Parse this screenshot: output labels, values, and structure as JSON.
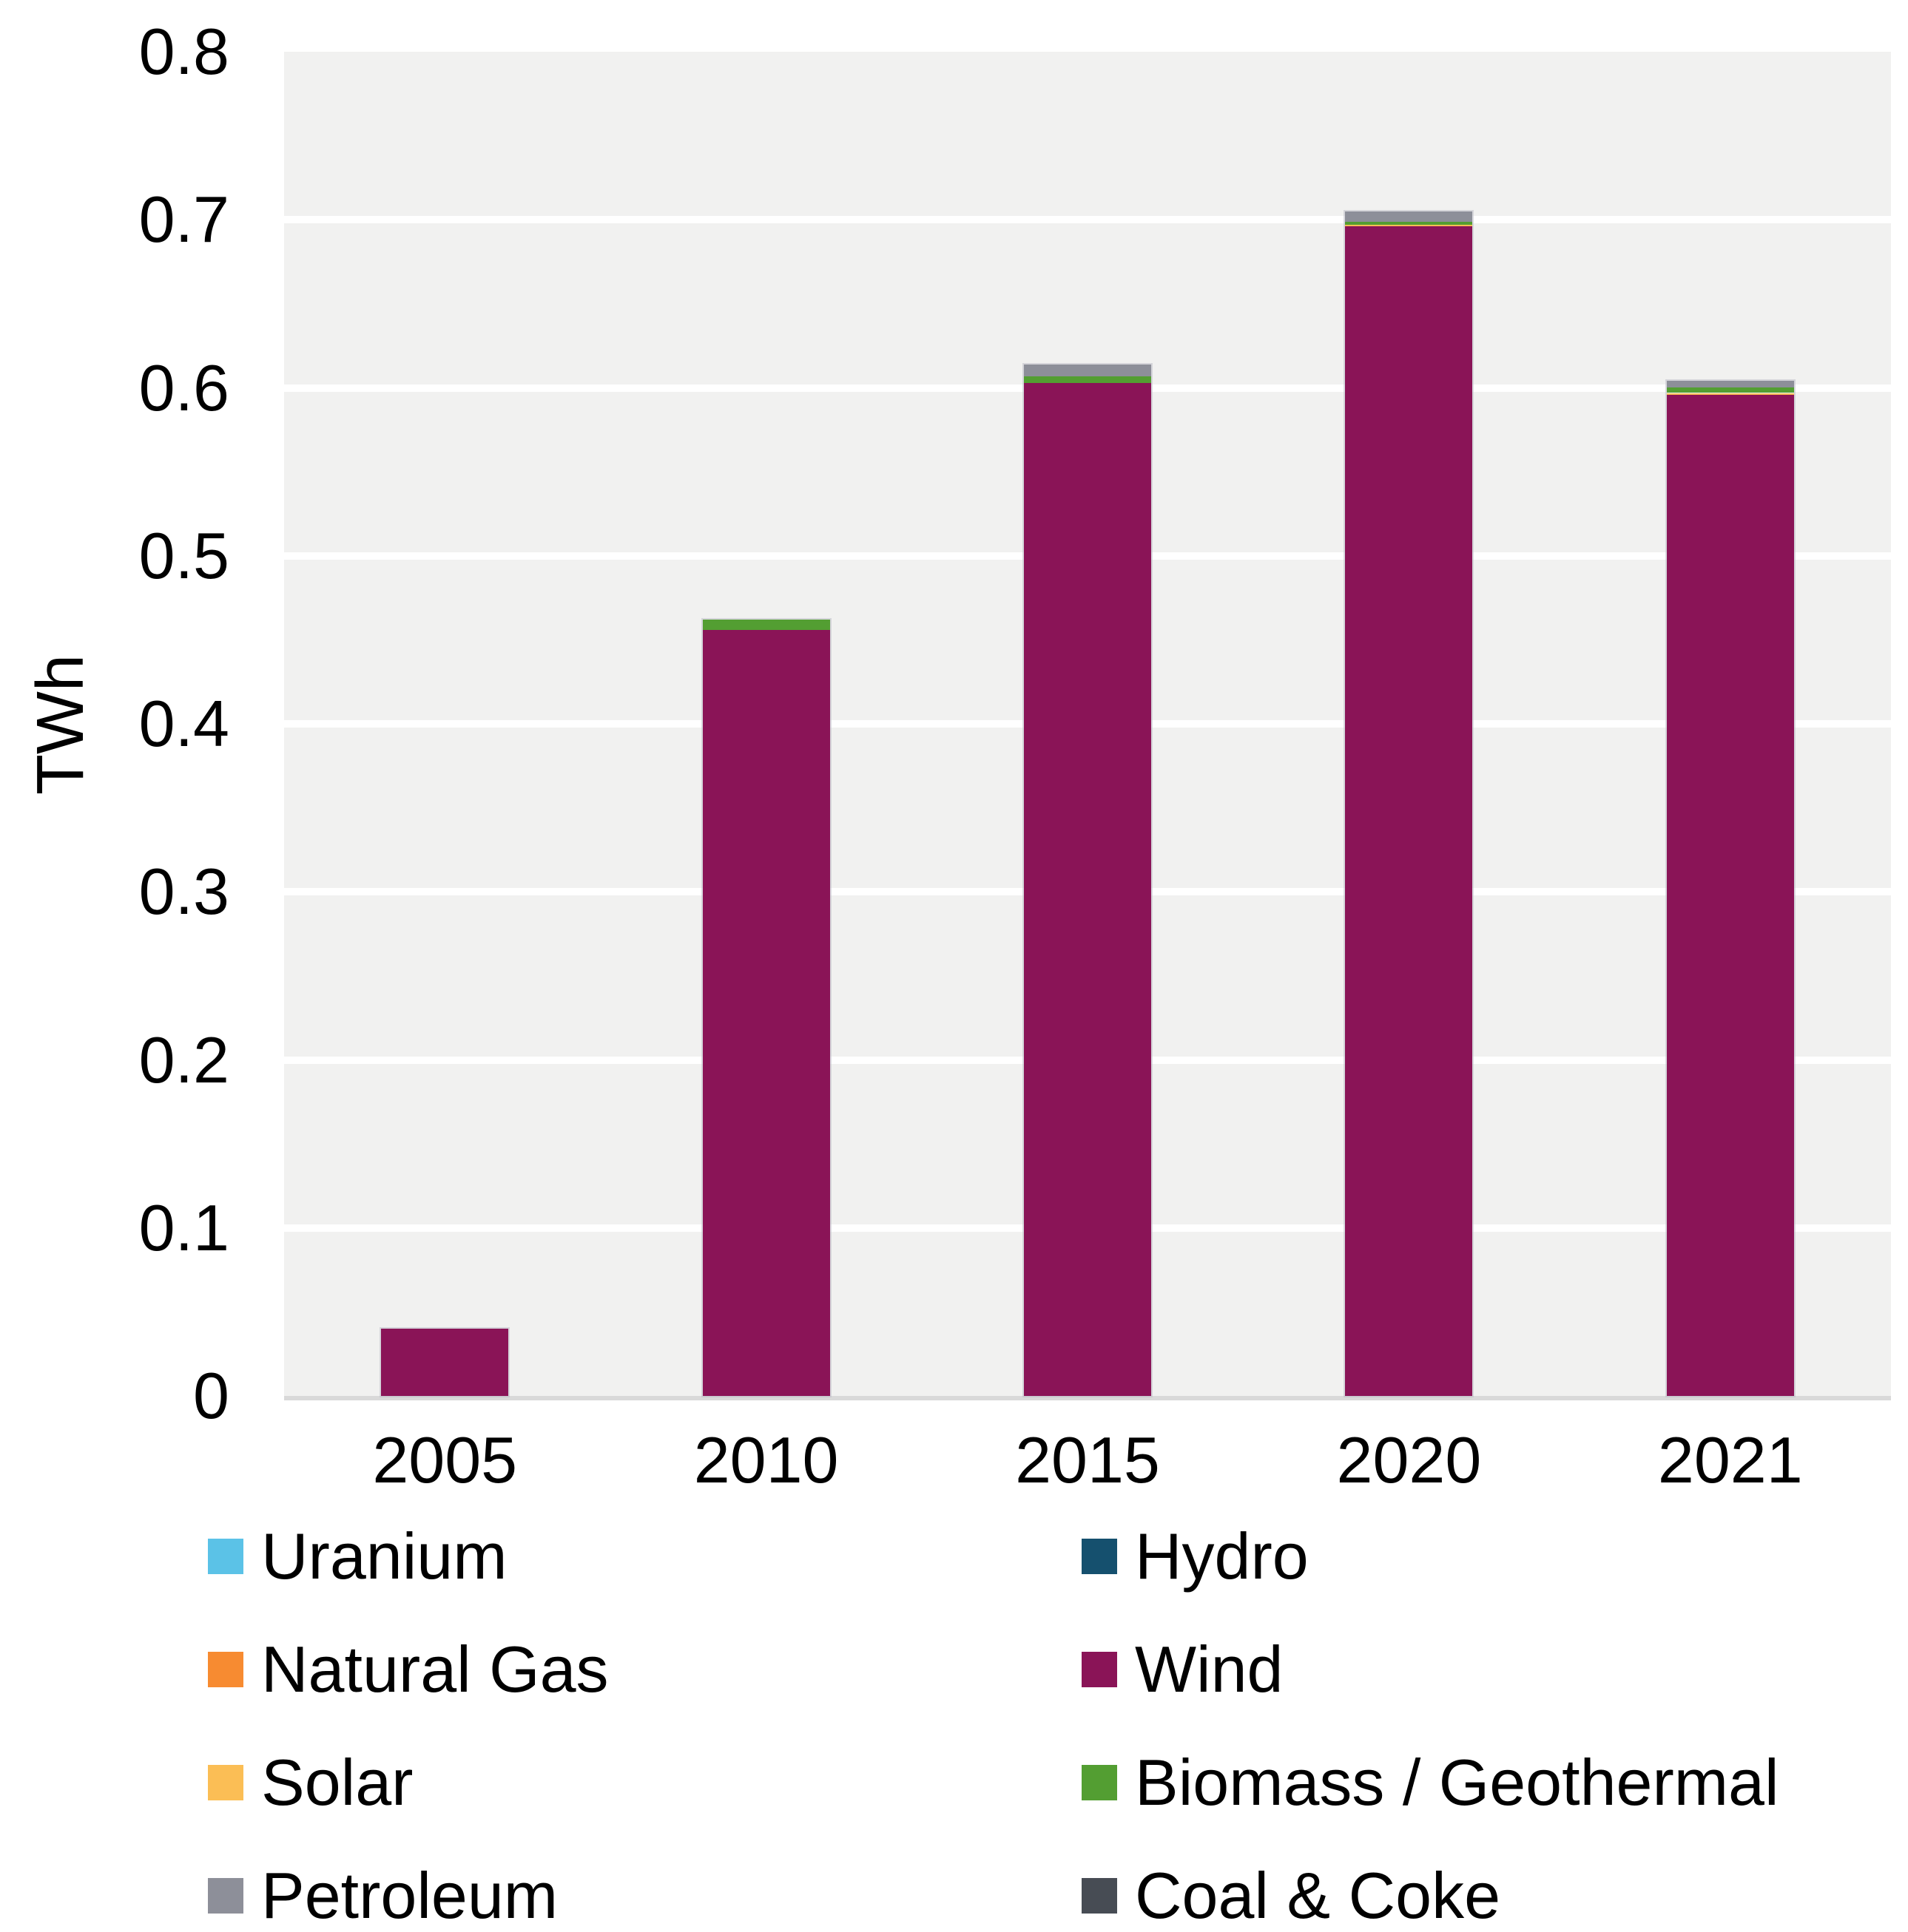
{
  "chart_data": {
    "type": "bar",
    "stacked": true,
    "title": "",
    "xlabel": "",
    "ylabel": "TWh",
    "ylim": [
      0,
      0.8
    ],
    "grid": "horizontal",
    "plot_background": "#f1f1f0",
    "gridline_color": "#ffffff",
    "axis_line_color": "#d9d9d9",
    "yticks": [
      {
        "value": 0.0,
        "label": "0"
      },
      {
        "value": 0.1,
        "label": "0.1"
      },
      {
        "value": 0.2,
        "label": "0.2"
      },
      {
        "value": 0.3,
        "label": "0.3"
      },
      {
        "value": 0.4,
        "label": "0.4"
      },
      {
        "value": 0.5,
        "label": "0.5"
      },
      {
        "value": 0.6,
        "label": "0.6"
      },
      {
        "value": 0.7,
        "label": "0.7"
      },
      {
        "value": 0.8,
        "label": "0.8"
      }
    ],
    "categories": [
      "2005",
      "2010",
      "2015",
      "2020",
      "2021"
    ],
    "series": [
      {
        "name": "Uranium",
        "color": "#5bc2e7",
        "values": [
          0,
          0,
          0,
          0,
          0
        ]
      },
      {
        "name": "Hydro",
        "color": "#15506e",
        "values": [
          0,
          0,
          0,
          0,
          0
        ]
      },
      {
        "name": "Natural Gas",
        "color": "#f78b31",
        "values": [
          0,
          0,
          0,
          0,
          0
        ]
      },
      {
        "name": "Wind",
        "color": "#8a1457",
        "values": [
          0.04,
          0.456,
          0.603,
          0.696,
          0.596
        ]
      },
      {
        "name": "Solar",
        "color": "#fbbe55",
        "values": [
          0,
          0,
          0,
          0.001,
          0.001
        ]
      },
      {
        "name": "Biomass / Geothermal",
        "color": "#539e32",
        "values": [
          0,
          0.006,
          0.004,
          0.002,
          0.003
        ]
      },
      {
        "name": "Petroleum",
        "color": "#8d8f99",
        "values": [
          0,
          0,
          0.007,
          0.006,
          0.004
        ]
      },
      {
        "name": "Coal & Coke",
        "color": "#474c54",
        "values": [
          0,
          0,
          0,
          0,
          0
        ]
      }
    ],
    "totals": [
      0.04,
      0.462,
      0.614,
      0.705,
      0.604
    ],
    "legend_position": "bottom",
    "legend_columns": [
      [
        "Uranium",
        "Natural Gas",
        "Solar",
        "Petroleum"
      ],
      [
        "Hydro",
        "Wind",
        "Biomass / Geothermal",
        "Coal & Coke"
      ]
    ]
  }
}
